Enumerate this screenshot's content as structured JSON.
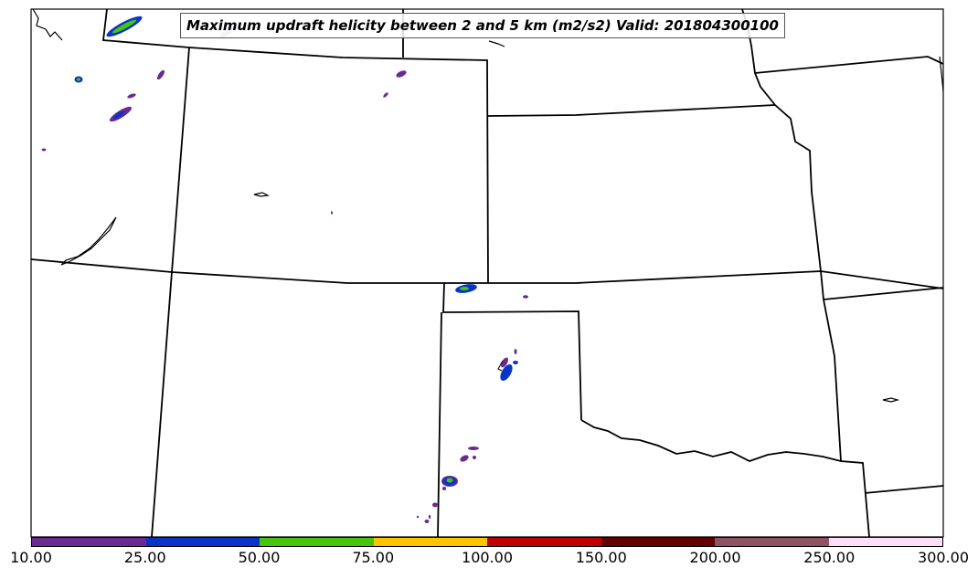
{
  "title": "Maximum updraft helicity between 2 and 5 km (m2/s2) Valid: 201804300100",
  "colorbar": {
    "ticks": [
      "10.00",
      "25.00",
      "50.00",
      "75.00",
      "100.00",
      "150.00",
      "200.00",
      "250.00",
      "300.00"
    ],
    "colors": [
      "#6a2a92",
      "#0a34c8",
      "#46c40e",
      "#ffc400",
      "#c00000",
      "#640000",
      "#8e5262",
      "#fde0f8"
    ]
  },
  "map_layers": {
    "boundaries": "state-borders",
    "fill": "helicity-contours"
  }
}
